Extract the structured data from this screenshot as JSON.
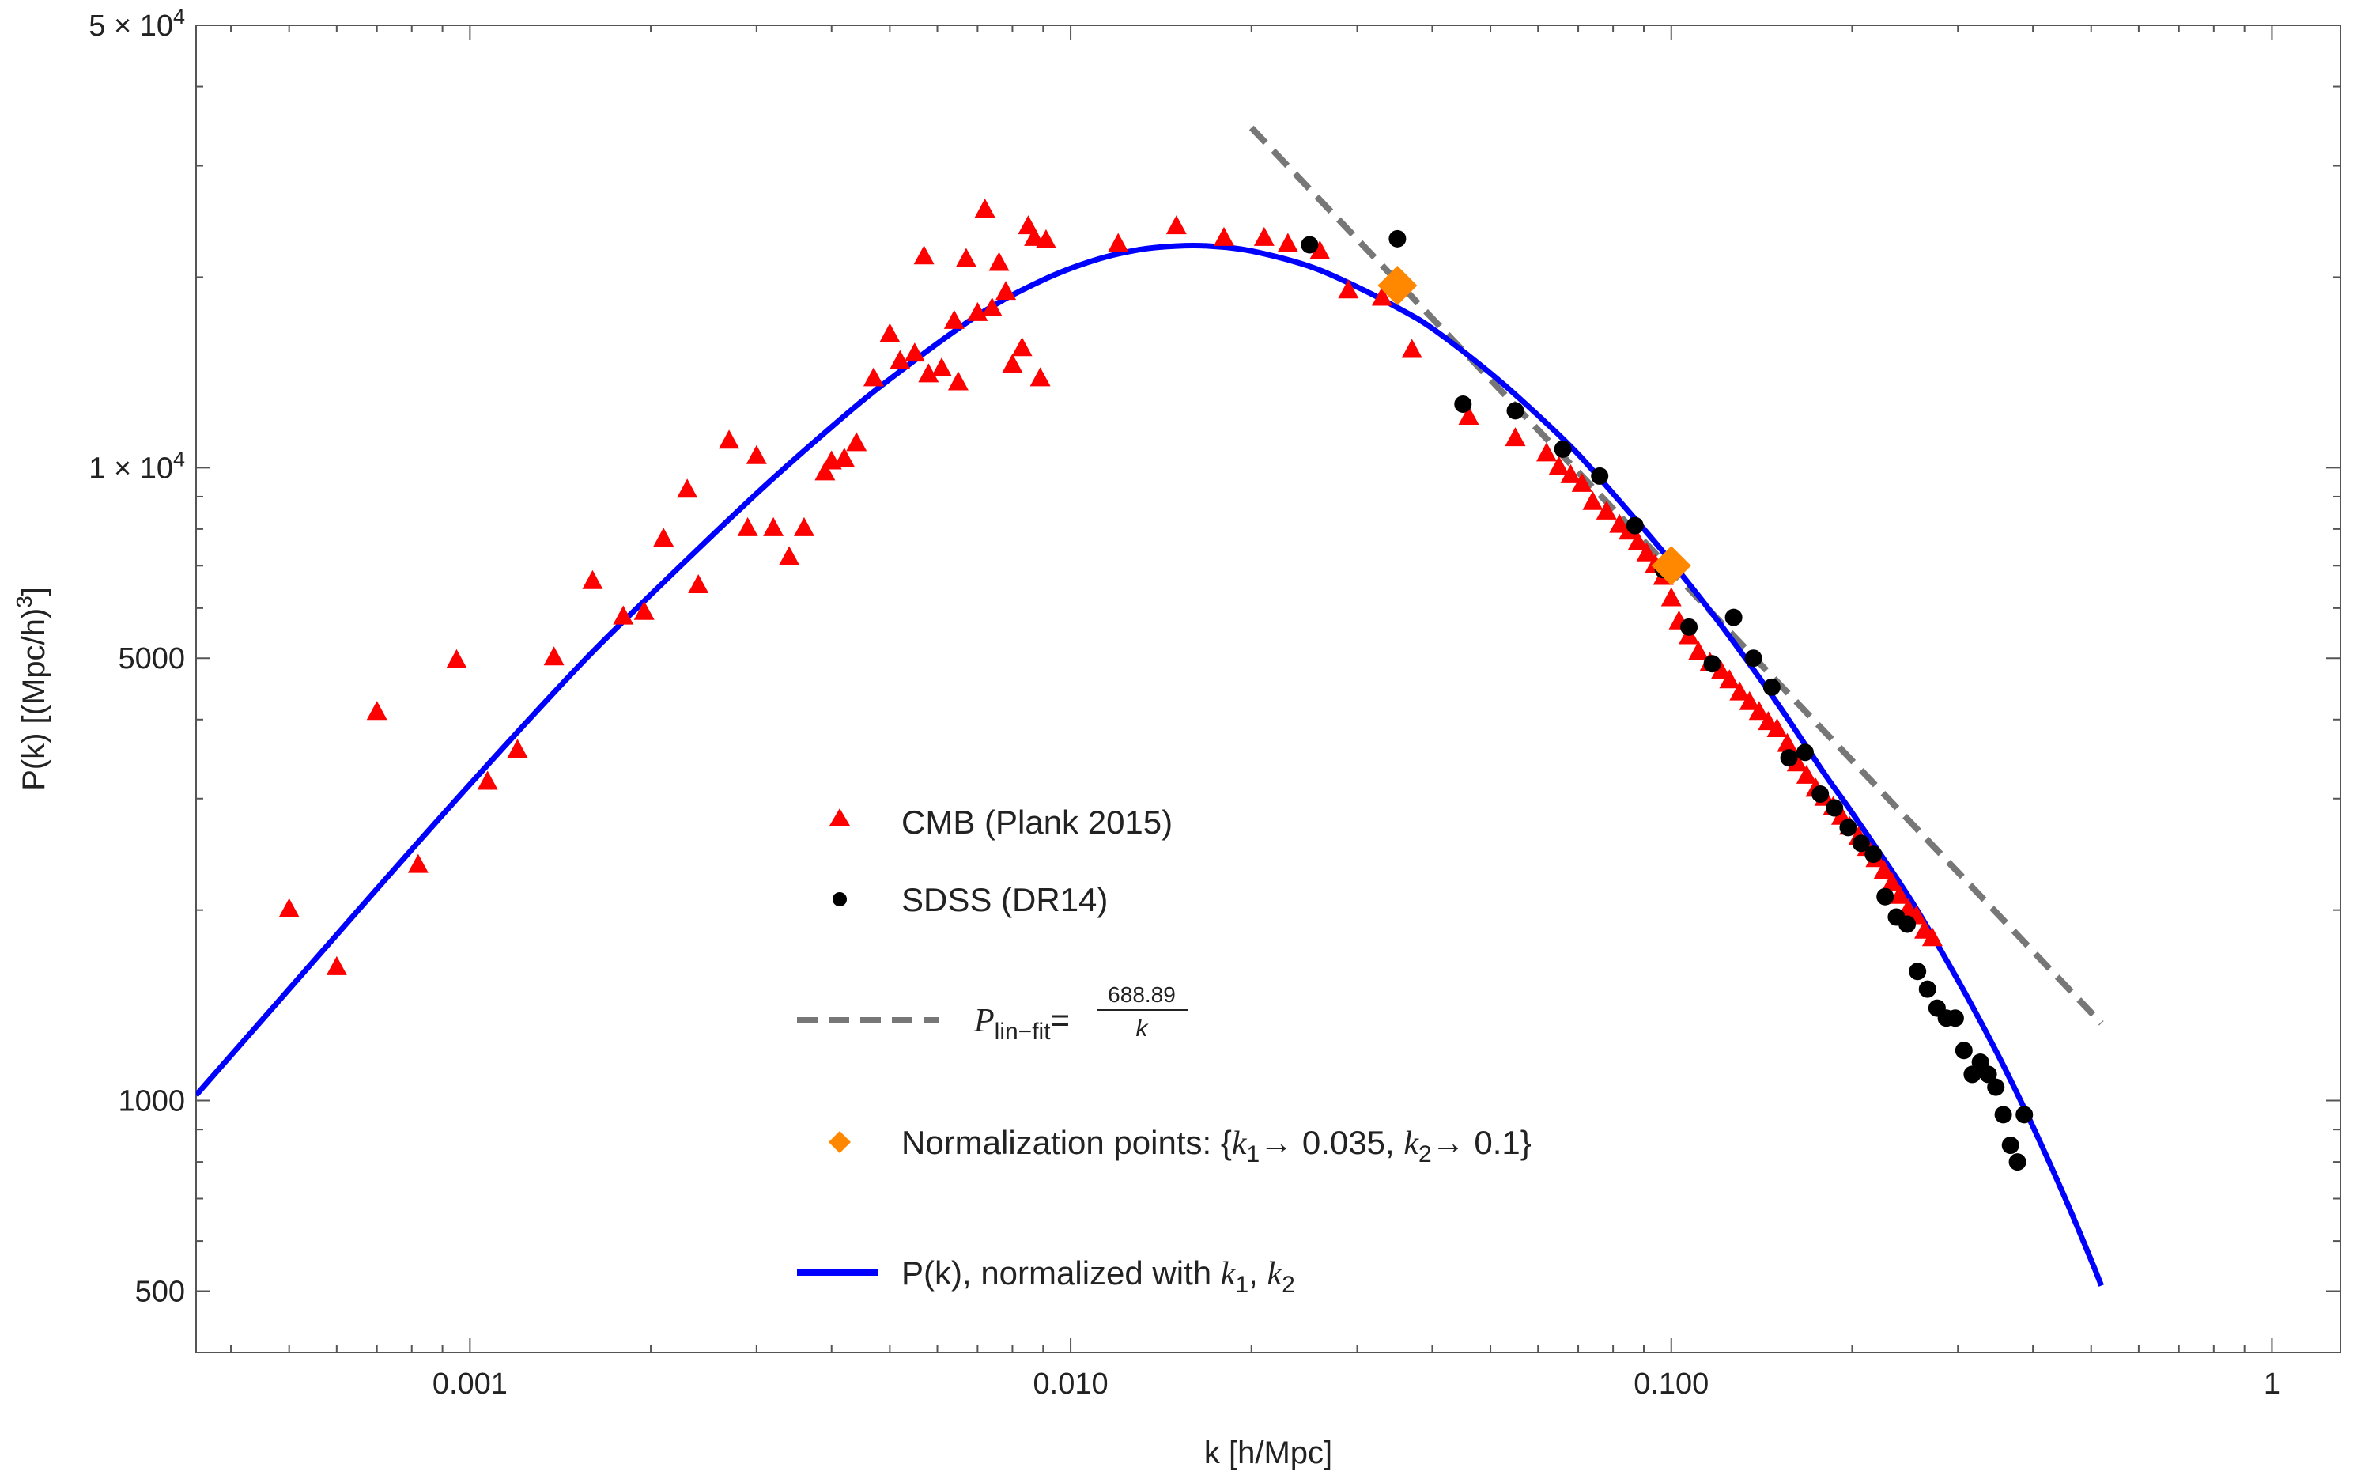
{
  "chart_data": {
    "type": "scatter",
    "xlabel": "k [h/Mpc]",
    "ylabel_main": "P(k) [(Mpc/h)",
    "ylabel_exp": "3",
    "ylabel_tail": "]",
    "xscale": "log",
    "yscale": "log",
    "xlim": [
      0.00035,
      1.3
    ],
    "ylim": [
      400,
      50000
    ],
    "xticks": [
      {
        "value": 0.001,
        "label": "0.001"
      },
      {
        "value": 0.01,
        "label": "0.010"
      },
      {
        "value": 0.1,
        "label": "0.100"
      },
      {
        "value": 1,
        "label": "1"
      }
    ],
    "yticks": [
      {
        "value": 500,
        "label": "500"
      },
      {
        "value": 1000,
        "label": "1000"
      },
      {
        "value": 5000,
        "label": "5000"
      },
      {
        "value": 10000,
        "label": "1 × 10",
        "exp": "4"
      },
      {
        "value": 50000,
        "label": "5 × 10",
        "exp": "4"
      }
    ],
    "legend_position": "center",
    "legend": {
      "cmb": "CMB (Plank 2015)",
      "sdss": "SDSS (DR14)",
      "fit_P": "P",
      "fit_sub": "lin−fit",
      "fit_eq": "=",
      "fit_num": "688.89",
      "fit_den": "k",
      "norm_pre": "Normalization points: {",
      "norm_k1": "k",
      "norm_s1": "1",
      "norm_mid": "→ 0.035, ",
      "norm_k2": "k",
      "norm_s2": "2",
      "norm_end": "→ 0.1}",
      "curve_pre": "P(k), normalized with ",
      "curve_k1": "k",
      "curve_s1": "1",
      "curve_comma": ", ",
      "curve_k2": "k",
      "curve_s2": "2"
    },
    "colors": {
      "cmb": "#ff0000",
      "sdss": "#000000",
      "fit": "#777777",
      "norm": "#ff8800",
      "curve": "#0000ff"
    },
    "lin_fit": {
      "amplitude": 688.89,
      "k_range": [
        0.02,
        0.52
      ]
    },
    "model_curve": {
      "k": [
        0.00035,
        0.0005,
        0.0007,
        0.001,
        0.0015,
        0.002,
        0.003,
        0.004,
        0.005,
        0.007,
        0.009,
        0.011,
        0.013,
        0.015,
        0.017,
        0.02,
        0.025,
        0.03,
        0.035,
        0.04,
        0.05,
        0.06,
        0.07,
        0.08,
        0.09,
        0.1,
        0.12,
        0.15,
        0.18,
        0.2,
        0.25,
        0.3,
        0.35,
        0.4,
        0.45,
        0.5,
        0.52
      ],
      "P": [
        1020,
        1500,
        2160,
        3160,
        4800,
        6300,
        9100,
        11600,
        13800,
        17400,
        19800,
        21300,
        22100,
        22400,
        22400,
        22000,
        20800,
        19300,
        17900,
        16600,
        14100,
        12100,
        10500,
        9100,
        8000,
        7100,
        5700,
        4250,
        3280,
        2850,
        2080,
        1550,
        1180,
        910,
        710,
        560,
        510
      ]
    },
    "series": [
      {
        "name": "CMB (Plank 2015)",
        "marker": "triangle",
        "x": [
          0.0005,
          0.0006,
          0.0007,
          0.00082,
          0.00095,
          0.00107,
          0.0012,
          0.00138,
          0.0016,
          0.0018,
          0.00195,
          0.0021,
          0.0023,
          0.0024,
          0.0027,
          0.0029,
          0.003,
          0.0032,
          0.0034,
          0.0036,
          0.0039,
          0.004,
          0.0042,
          0.0044,
          0.0047,
          0.005,
          0.0052,
          0.0055,
          0.0057,
          0.0058,
          0.0061,
          0.0064,
          0.0065,
          0.0067,
          0.007,
          0.0072,
          0.0074,
          0.0076,
          0.0078,
          0.008,
          0.0083,
          0.0085,
          0.0087,
          0.0089,
          0.0091,
          0.012,
          0.015,
          0.018,
          0.021,
          0.023,
          0.026,
          0.029,
          0.033,
          0.037,
          0.046,
          0.055,
          0.062,
          0.065,
          0.068,
          0.071,
          0.074,
          0.078,
          0.082,
          0.085,
          0.088,
          0.091,
          0.094,
          0.097,
          0.1,
          0.103,
          0.107,
          0.111,
          0.116,
          0.121,
          0.125,
          0.13,
          0.135,
          0.14,
          0.145,
          0.15,
          0.156,
          0.162,
          0.168,
          0.174,
          0.18,
          0.186,
          0.192,
          0.198,
          0.205,
          0.212,
          0.219,
          0.226,
          0.233,
          0.24,
          0.248,
          0.256,
          0.264,
          0.272
        ],
        "y": [
          2000,
          1620,
          4100,
          2350,
          4950,
          3180,
          3570,
          5000,
          6600,
          5800,
          5900,
          7700,
          9200,
          6500,
          11000,
          8000,
          10400,
          8000,
          7200,
          8000,
          9800,
          10200,
          10300,
          10900,
          13800,
          16200,
          14700,
          15100,
          21500,
          14000,
          14300,
          17000,
          13600,
          21300,
          17500,
          25500,
          17800,
          21000,
          18900,
          14500,
          15400,
          24000,
          23000,
          13800,
          22800,
          22500,
          24000,
          23000,
          23000,
          22500,
          21900,
          19000,
          18500,
          15300,
          12000,
          11100,
          10500,
          10000,
          9700,
          9400,
          8800,
          8500,
          8100,
          7900,
          7600,
          7300,
          7000,
          6700,
          6200,
          5700,
          5400,
          5100,
          4900,
          4750,
          4600,
          4400,
          4250,
          4100,
          3950,
          3850,
          3650,
          3400,
          3250,
          3100,
          3000,
          2900,
          2800,
          2700,
          2600,
          2500,
          2400,
          2300,
          2200,
          2100,
          2000,
          1950,
          1850,
          1800
        ]
      },
      {
        "name": "SDSS (DR14)",
        "marker": "circle",
        "x": [
          0.025,
          0.035,
          0.045,
          0.055,
          0.066,
          0.076,
          0.087,
          0.097,
          0.107,
          0.117,
          0.127,
          0.137,
          0.147,
          0.157,
          0.167,
          0.177,
          0.187,
          0.197,
          0.207,
          0.217,
          0.227,
          0.237,
          0.247,
          0.257,
          0.267,
          0.277,
          0.287,
          0.297,
          0.307,
          0.317,
          0.327,
          0.337,
          0.347,
          0.357,
          0.367,
          0.377,
          0.387
        ],
        "y": [
          22500,
          23000,
          12600,
          12300,
          10700,
          9700,
          8100,
          6900,
          5600,
          4900,
          5800,
          5000,
          4500,
          3480,
          3550,
          3050,
          2900,
          2700,
          2550,
          2450,
          2100,
          1950,
          1900,
          1600,
          1500,
          1400,
          1350,
          1350,
          1200,
          1100,
          1150,
          1100,
          1050,
          950,
          850,
          800,
          950
        ]
      },
      {
        "name": "Normalization points",
        "marker": "diamond",
        "x": [
          0.035,
          0.1
        ],
        "y": [
          19400,
          7000
        ]
      }
    ]
  }
}
